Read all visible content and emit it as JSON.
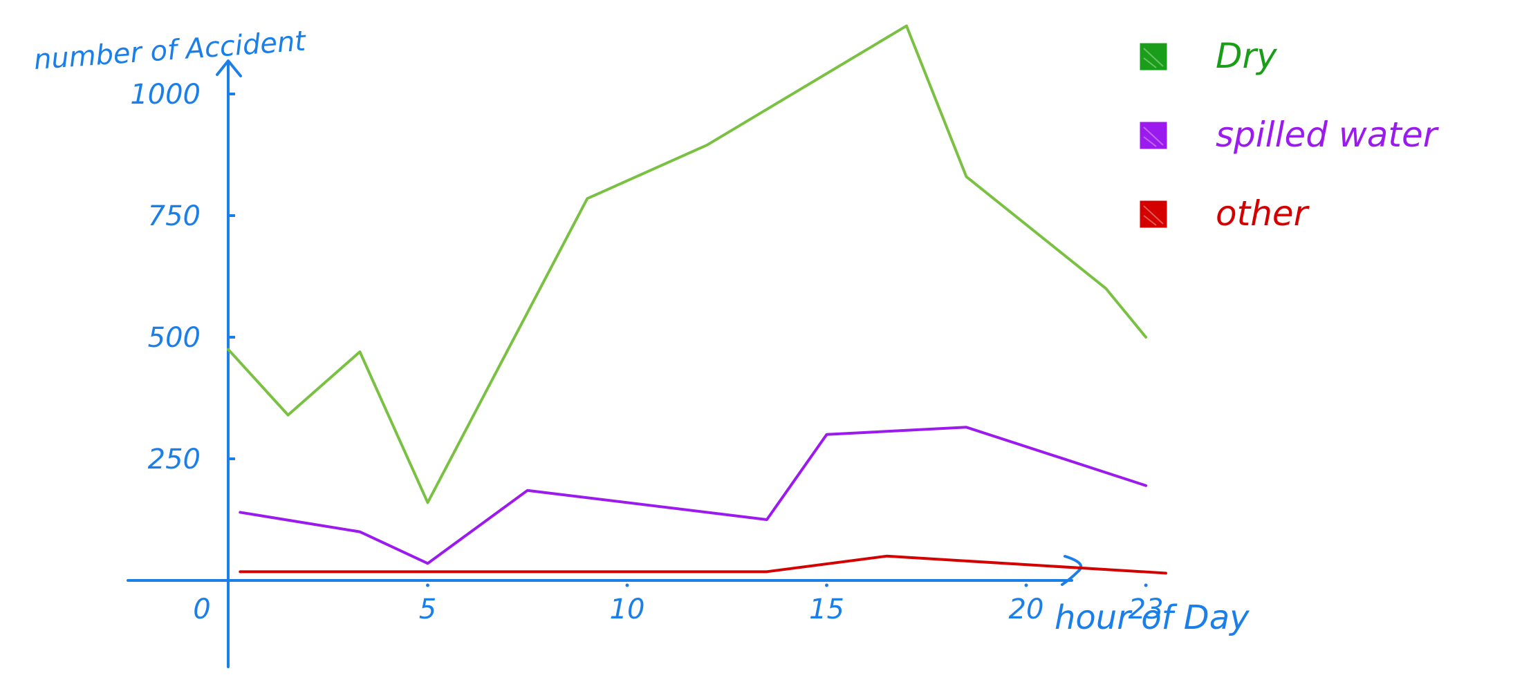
{
  "chart_data": {
    "type": "line",
    "title": "",
    "xlabel": "hour of Day",
    "ylabel": "number of Accident",
    "xlim": [
      0,
      23
    ],
    "ylim": [
      0,
      1000
    ],
    "x_ticks": [
      0,
      5,
      10,
      15,
      20,
      23
    ],
    "x_tick_labels": [
      "0",
      "5",
      "10",
      "15",
      "20",
      "23"
    ],
    "y_ticks": [
      250,
      500,
      750,
      1000
    ],
    "y_tick_labels": [
      "250",
      "500",
      "750",
      "1000"
    ],
    "grid": false,
    "legend_position": "top-right",
    "series": [
      {
        "name": "Dry",
        "color": "#7ac143",
        "legend_color": "#1a9e1a",
        "x": [
          0,
          1.5,
          3.3,
          5,
          9,
          12,
          17,
          18.5,
          22,
          23
        ],
        "y": [
          475,
          340,
          470,
          160,
          785,
          895,
          1140,
          830,
          600,
          500
        ]
      },
      {
        "name": "spilled water",
        "color": "#9b1aee",
        "legend_color": "#9b1aee",
        "x": [
          0.3,
          3.3,
          5,
          7.5,
          13.5,
          15,
          18.5,
          23
        ],
        "y": [
          140,
          100,
          35,
          185,
          125,
          300,
          315,
          195
        ]
      },
      {
        "name": "other",
        "color": "#d40000",
        "legend_color": "#d40000",
        "x": [
          0.3,
          13.5,
          16.5,
          23.5
        ],
        "y": [
          18,
          18,
          50,
          15
        ]
      }
    ]
  },
  "axis_color": "#1a7fe8"
}
